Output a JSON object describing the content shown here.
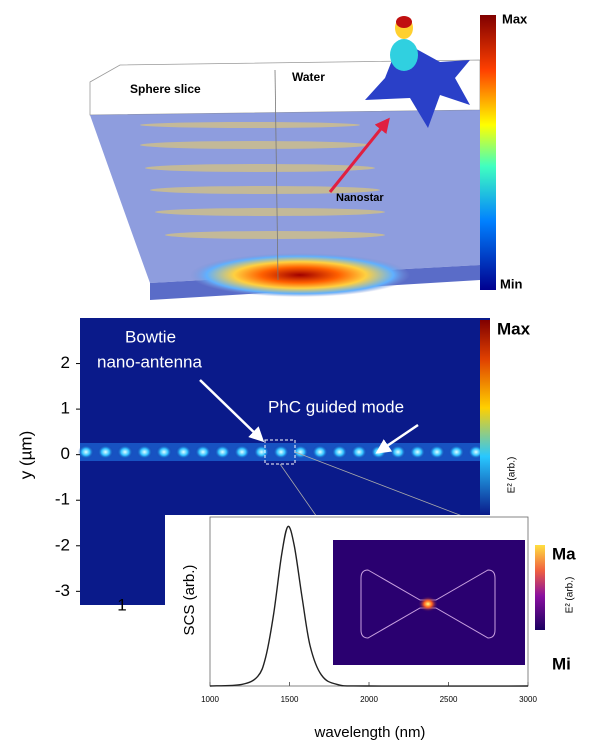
{
  "top_panel": {
    "labels": [
      "Sphere slice",
      "Water",
      "Nanostar"
    ],
    "colorbar_max": "Max",
    "colorbar_min": "Min"
  },
  "middle_panel": {
    "annotations": [
      "Bowtie",
      "nano-antenna",
      "PhC guided mode"
    ],
    "y_label": "y (µm)",
    "ylim": [
      -3.3,
      3
    ],
    "yticks": [
      2,
      1,
      0,
      -1,
      -2,
      -3
    ],
    "x_tick": "1",
    "colorbar_max": "Max",
    "colorbar_label": "E² (arb.)"
  },
  "spectrum": {
    "x_label": "wavelength (nm)",
    "y_label": "SCS (arb.)",
    "xlim": [
      1000,
      3000
    ],
    "xticks": [
      1000,
      1500,
      2000,
      2500,
      3000
    ],
    "ylim": [
      0,
      1.06
    ],
    "x": [
      1000,
      1200,
      1300,
      1350,
      1400,
      1450,
      1490,
      1530,
      1580,
      1630,
      1700,
      1800,
      2000,
      3000
    ],
    "y": [
      0,
      0.01,
      0.06,
      0.18,
      0.45,
      0.82,
      1,
      0.88,
      0.55,
      0.25,
      0.07,
      0.01,
      0,
      0
    ]
  },
  "inset": {
    "colorbar_max": "Ma",
    "colorbar_min": "Mi",
    "colorbar_label": "E² (arb.)"
  }
}
